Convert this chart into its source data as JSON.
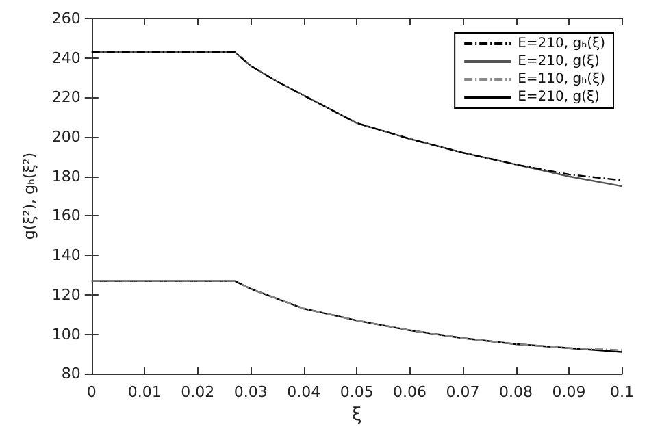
{
  "chart_data": {
    "type": "line",
    "xlabel": "ξ",
    "ylabel": "g(ξ²), gₕ(ξ²)",
    "x": [
      0,
      0.027,
      0.03,
      0.035,
      0.04,
      0.045,
      0.05,
      0.06,
      0.07,
      0.08,
      0.09,
      0.1
    ],
    "series": [
      {
        "name": "E=210, gₕ(ξ)",
        "color": "#000000",
        "line_style": "dashed",
        "values": [
          243,
          243,
          236,
          228,
          221,
          214,
          207,
          199,
          192,
          186,
          181,
          178
        ]
      },
      {
        "name": "E=210, g(ξ)",
        "color": "#555555",
        "line_style": "solid",
        "values": [
          243,
          243,
          236,
          228,
          221,
          214,
          207,
          199,
          192,
          186,
          180,
          175
        ]
      },
      {
        "name": "E=110, gₕ(ξ)",
        "color": "#888888",
        "line_style": "dashed",
        "values": [
          127,
          127,
          123,
          118,
          113,
          110,
          107,
          102,
          98,
          95,
          93,
          92
        ]
      },
      {
        "name": "E=210, g(ξ)",
        "color": "#000000",
        "line_style": "solid",
        "values": [
          127,
          127,
          123,
          118,
          113,
          110,
          107,
          102,
          98,
          95,
          93,
          91
        ]
      }
    ],
    "xlim": [
      0,
      0.1
    ],
    "xticks": [
      0,
      0.01,
      0.02,
      0.03,
      0.04,
      0.05,
      0.06,
      0.07,
      0.08,
      0.09,
      0.1
    ],
    "ylim": [
      80,
      260
    ],
    "yticks": [
      80,
      100,
      120,
      140,
      160,
      180,
      200,
      220,
      240,
      260
    ],
    "grid": false,
    "legend": "top right",
    "marker": "none"
  }
}
